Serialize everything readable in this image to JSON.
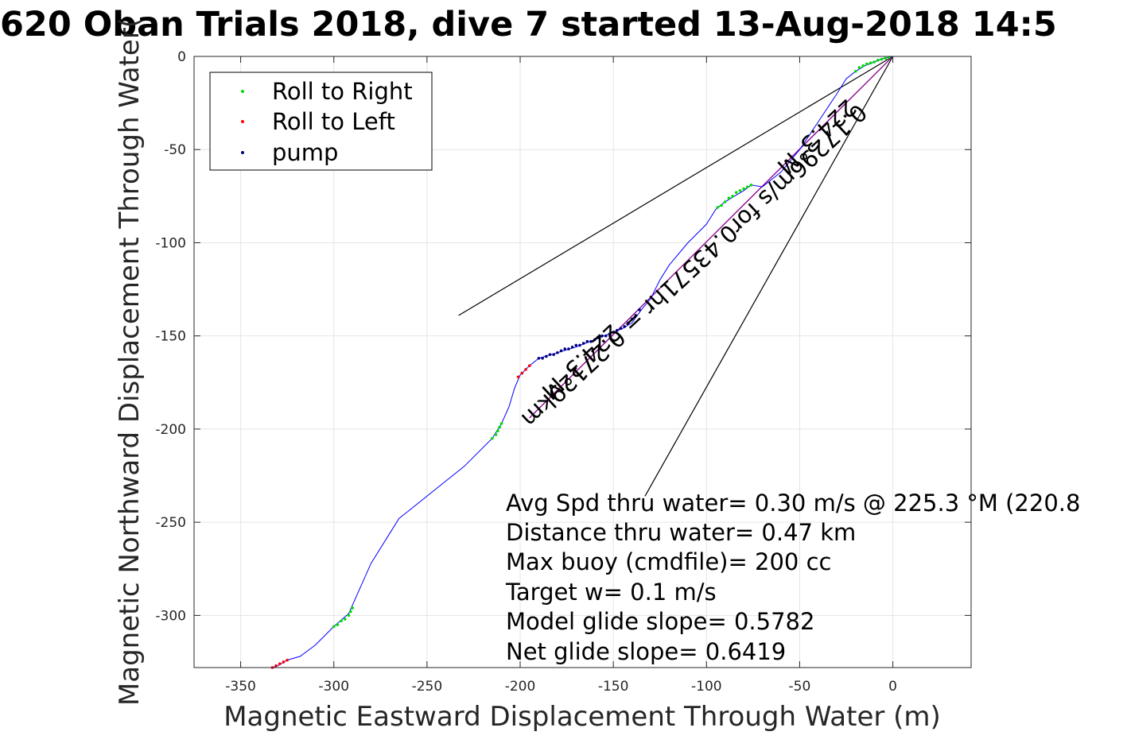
{
  "chart_data": {
    "type": "scatter",
    "title": "620 Oban Trials 2018, dive 7 started 13-Aug-2018 14:5",
    "xlabel": "Magnetic Eastward Displacement Through Water (m)",
    "ylabel": "Magnetic Northward Displacement Through Water(",
    "xlim": [
      -375,
      42
    ],
    "ylim": [
      -328,
      0
    ],
    "xticks": [
      -350,
      -300,
      -250,
      -200,
      -150,
      -100,
      -50,
      0
    ],
    "yticks": [
      0,
      -50,
      -100,
      -150,
      -200,
      -250,
      -300
    ],
    "grid": true,
    "legend_position": "top-left",
    "legend": [
      {
        "label": "Roll to Right",
        "color": "#00dd00"
      },
      {
        "label": "Roll to Left",
        "color": "#ff0000"
      },
      {
        "label": "pump",
        "color": "#000080"
      }
    ],
    "track": {
      "color": "#0000ff",
      "points": [
        [
          0,
          0
        ],
        [
          -5,
          -1
        ],
        [
          -10,
          -3
        ],
        [
          -15,
          -5
        ],
        [
          -20,
          -8
        ],
        [
          -25,
          -12
        ],
        [
          -30,
          -20
        ],
        [
          -40,
          -35
        ],
        [
          -50,
          -50
        ],
        [
          -60,
          -62
        ],
        [
          -70,
          -70
        ],
        [
          -76,
          -69
        ],
        [
          -80,
          -72
        ],
        [
          -85,
          -75
        ],
        [
          -90,
          -78
        ],
        [
          -95,
          -82
        ],
        [
          -100,
          -90
        ],
        [
          -110,
          -100
        ],
        [
          -120,
          -112
        ],
        [
          -125,
          -120
        ],
        [
          -130,
          -130
        ],
        [
          -135,
          -136
        ],
        [
          -140,
          -143
        ],
        [
          -145,
          -146
        ],
        [
          -150,
          -148
        ],
        [
          -155,
          -150
        ],
        [
          -160,
          -152
        ],
        [
          -170,
          -156
        ],
        [
          -180,
          -159
        ],
        [
          -190,
          -162
        ],
        [
          -195,
          -166
        ],
        [
          -200,
          -171
        ],
        [
          -203,
          -178
        ],
        [
          -206,
          -188
        ],
        [
          -210,
          -197
        ],
        [
          -215,
          -205
        ],
        [
          -230,
          -220
        ],
        [
          -245,
          -232
        ],
        [
          -260,
          -244
        ],
        [
          -265,
          -248
        ],
        [
          -270,
          -256
        ],
        [
          -280,
          -272
        ],
        [
          -288,
          -290
        ],
        [
          -292,
          -299
        ],
        [
          -300,
          -306
        ],
        [
          -310,
          -316
        ],
        [
          -318,
          -322
        ],
        [
          -325,
          -324
        ],
        [
          -330,
          -327
        ],
        [
          -333,
          -328
        ]
      ]
    },
    "roll_right": [
      [
        -2,
        -0.5
      ],
      [
        -4,
        -1
      ],
      [
        -6,
        -1.5
      ],
      [
        -8,
        -2
      ],
      [
        -10,
        -3
      ],
      [
        -12,
        -3.5
      ],
      [
        -14,
        -4
      ],
      [
        -16,
        -5
      ],
      [
        -18,
        -6
      ],
      [
        -20,
        -8
      ],
      [
        -76,
        -69
      ],
      [
        -78,
        -70
      ],
      [
        -80,
        -71
      ],
      [
        -82,
        -72
      ],
      [
        -84,
        -73
      ],
      [
        -86,
        -75
      ],
      [
        -88,
        -76
      ],
      [
        -90,
        -78
      ],
      [
        -92,
        -80
      ],
      [
        -94,
        -81
      ],
      [
        -210,
        -197
      ],
      [
        -211,
        -199
      ],
      [
        -212,
        -201
      ],
      [
        -213,
        -203
      ],
      [
        -215,
        -205
      ],
      [
        -290,
        -296
      ],
      [
        -291,
        -298
      ],
      [
        -292,
        -300
      ],
      [
        -294,
        -302
      ],
      [
        -296,
        -303
      ],
      [
        -298,
        -305
      ],
      [
        -300,
        -306
      ]
    ],
    "roll_left": [
      [
        -195,
        -166
      ],
      [
        -197,
        -168
      ],
      [
        -199,
        -170
      ],
      [
        -201,
        -172
      ],
      [
        -325,
        -324
      ],
      [
        -327,
        -325
      ],
      [
        -329,
        -326
      ],
      [
        -331,
        -327
      ],
      [
        -333,
        -328
      ]
    ],
    "pump": [
      [
        -136,
        -136
      ],
      [
        -138,
        -139
      ],
      [
        -140,
        -141
      ],
      [
        -142,
        -143
      ],
      [
        -144,
        -145
      ],
      [
        -146,
        -146
      ],
      [
        -148,
        -147
      ],
      [
        -150,
        -148
      ],
      [
        -152,
        -149
      ],
      [
        -154,
        -150
      ],
      [
        -156,
        -150
      ],
      [
        -158,
        -151
      ],
      [
        -160,
        -152
      ],
      [
        -162,
        -153
      ],
      [
        -164,
        -153
      ],
      [
        -166,
        -154
      ],
      [
        -168,
        -155
      ],
      [
        -170,
        -155
      ],
      [
        -172,
        -156
      ],
      [
        -174,
        -157
      ],
      [
        -176,
        -157
      ],
      [
        -178,
        -158
      ],
      [
        -180,
        -159
      ],
      [
        -182,
        -160
      ],
      [
        -184,
        -160
      ],
      [
        -186,
        -161
      ],
      [
        -188,
        -162
      ],
      [
        -190,
        -162
      ]
    ],
    "heading_lines": [
      {
        "from": [
          0,
          0
        ],
        "to": [
          -233,
          -139
        ],
        "color": "#000000"
      },
      {
        "from": [
          0,
          0
        ],
        "to": [
          -133,
          -236
        ],
        "color": "#000000"
      },
      {
        "from": [
          0,
          0
        ],
        "to": [
          -195,
          -194
        ],
        "color": "#ff00ff"
      },
      {
        "from": [
          0,
          0
        ],
        "to": [
          -195,
          -194
        ],
        "color": "#800080"
      }
    ],
    "annotations": {
      "rotated_1": "224.3°M",
      "rotated_2": "0.17296m/s for0.43571hr = 0.27129km",
      "rotated_3": "224.3°M"
    },
    "stats": [
      "Avg Spd thru water=  0.30 m/s @ 225.3 °M (220.8",
      "Distance thru water=  0.47 km",
      "Max buoy (cmdfile)= 200 cc",
      "Target w= 0.1 m/s",
      "Model glide slope= 0.5782",
      "Net glide slope= 0.6419"
    ]
  }
}
